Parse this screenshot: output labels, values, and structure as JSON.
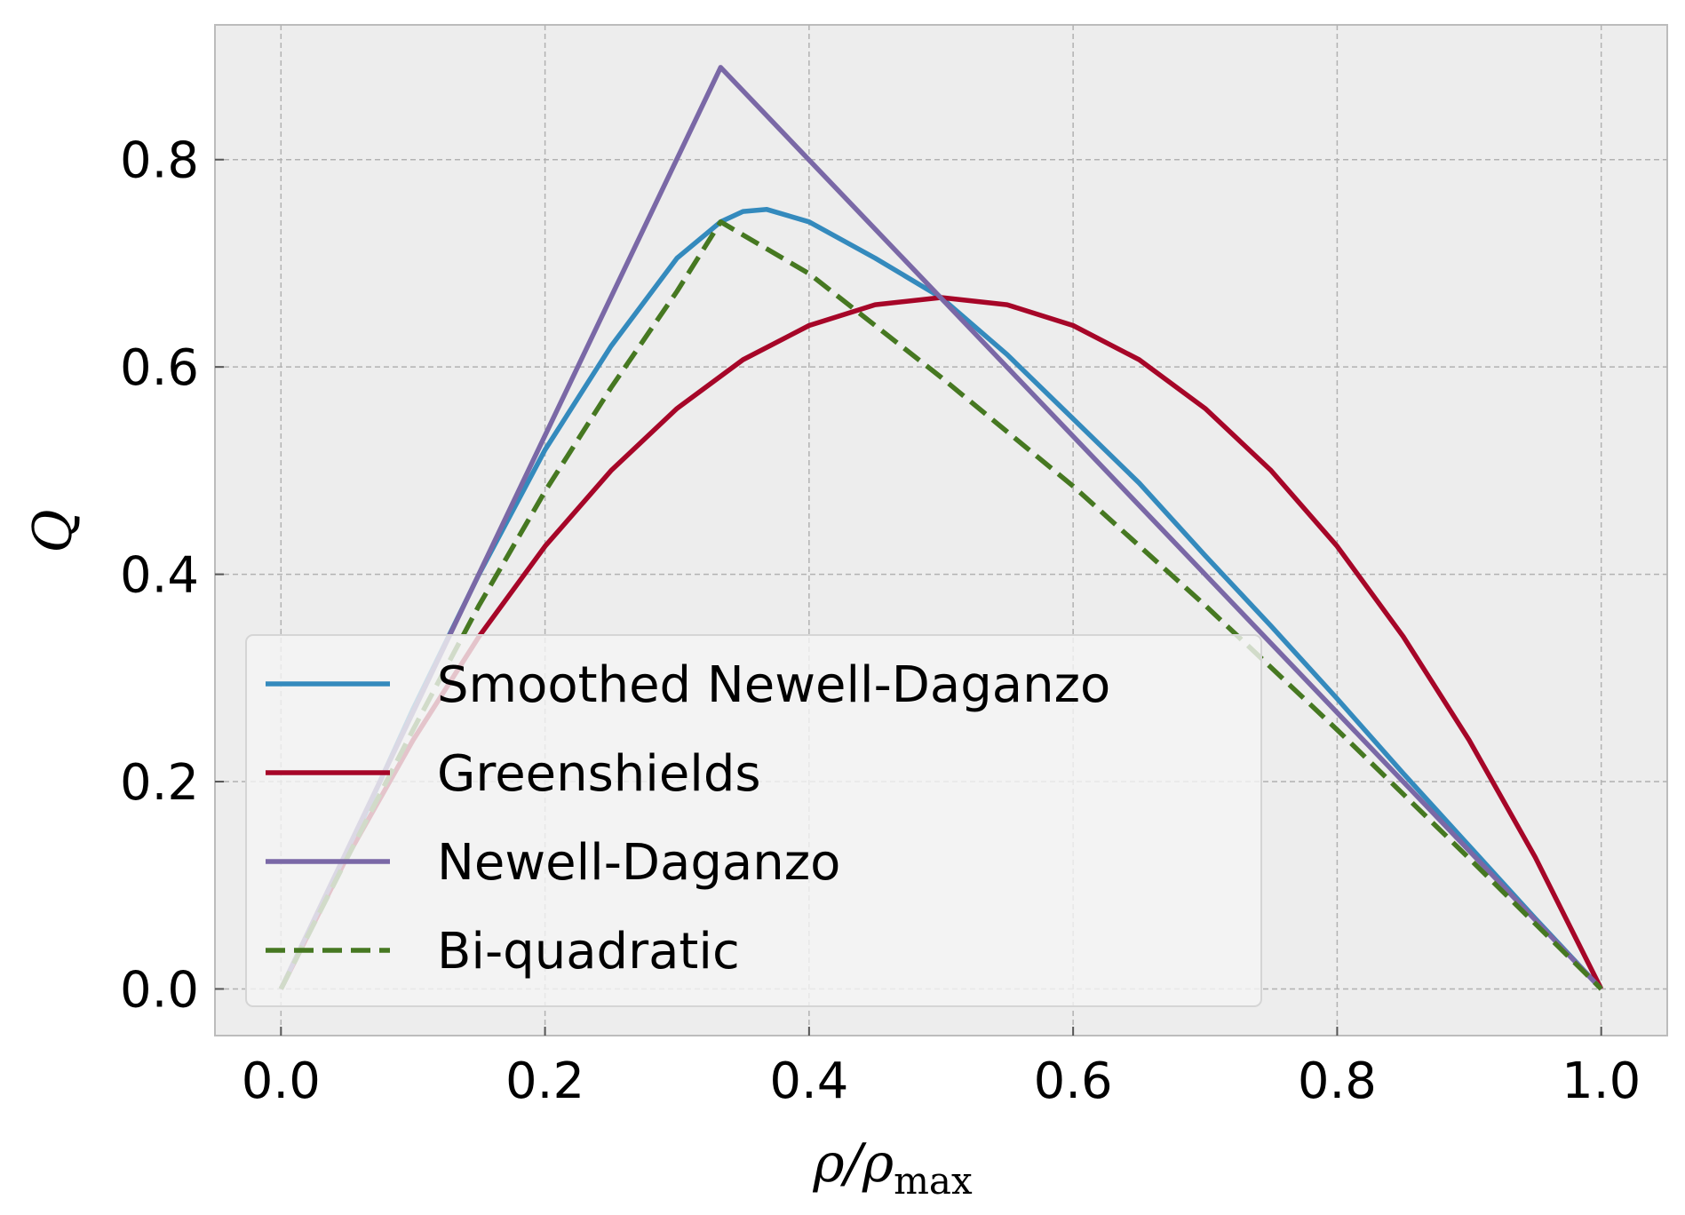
{
  "chart_data": {
    "type": "line",
    "title": "",
    "xlabel_main": "ρ/ρ",
    "xlabel_sub": "max",
    "ylabel": "Q",
    "xlim": [
      -0.05,
      1.05
    ],
    "ylim": [
      -0.045,
      0.93
    ],
    "xticks": [
      0.0,
      0.2,
      0.4,
      0.6,
      0.8,
      1.0
    ],
    "xtick_labels": [
      "0.0",
      "0.2",
      "0.4",
      "0.6",
      "0.8",
      "1.0"
    ],
    "yticks": [
      0.0,
      0.2,
      0.4,
      0.6,
      0.8
    ],
    "ytick_labels": [
      "0.0",
      "0.2",
      "0.4",
      "0.6",
      "0.8"
    ],
    "grid": true,
    "legend_position": "lower-left",
    "background_color": "#ededed",
    "series": [
      {
        "name": "Smoothed Newell-Daganzo",
        "color": "#348abd",
        "style": "solid",
        "x": [
          0.0,
          0.05,
          0.1,
          0.15,
          0.2,
          0.25,
          0.3,
          0.333,
          0.35,
          0.368,
          0.4,
          0.45,
          0.5,
          0.55,
          0.6,
          0.65,
          0.7,
          0.75,
          0.8,
          0.85,
          0.9,
          0.95,
          1.0
        ],
        "y": [
          0.0,
          0.13,
          0.27,
          0.4,
          0.52,
          0.62,
          0.705,
          0.74,
          0.75,
          0.752,
          0.74,
          0.705,
          0.667,
          0.612,
          0.55,
          0.488,
          0.418,
          0.35,
          0.28,
          0.208,
          0.138,
          0.068,
          0.0
        ]
      },
      {
        "name": "Greenshields",
        "color": "#a60628",
        "style": "solid",
        "x": [
          0.0,
          0.05,
          0.1,
          0.15,
          0.2,
          0.25,
          0.3,
          0.35,
          0.4,
          0.45,
          0.5,
          0.55,
          0.6,
          0.65,
          0.7,
          0.75,
          0.8,
          0.85,
          0.9,
          0.95,
          1.0
        ],
        "y": [
          0.0,
          0.127,
          0.24,
          0.34,
          0.427,
          0.5,
          0.56,
          0.607,
          0.64,
          0.66,
          0.667,
          0.66,
          0.64,
          0.607,
          0.56,
          0.5,
          0.427,
          0.34,
          0.24,
          0.127,
          0.0
        ]
      },
      {
        "name": "Newell-Daganzo",
        "color": "#7a68a6",
        "style": "solid",
        "x": [
          0.0,
          0.333,
          1.0
        ],
        "y": [
          0.0,
          0.889,
          0.0
        ]
      },
      {
        "name": "Bi-quadratic",
        "color": "#467821",
        "style": "dashed",
        "x": [
          0.0,
          0.05,
          0.1,
          0.15,
          0.2,
          0.25,
          0.3,
          0.333,
          0.4,
          0.5,
          0.6,
          0.7,
          0.8,
          0.9,
          1.0
        ],
        "y": [
          0.0,
          0.126,
          0.25,
          0.37,
          0.48,
          0.58,
          0.673,
          0.74,
          0.69,
          0.59,
          0.485,
          0.37,
          0.25,
          0.126,
          0.0
        ]
      }
    ]
  }
}
